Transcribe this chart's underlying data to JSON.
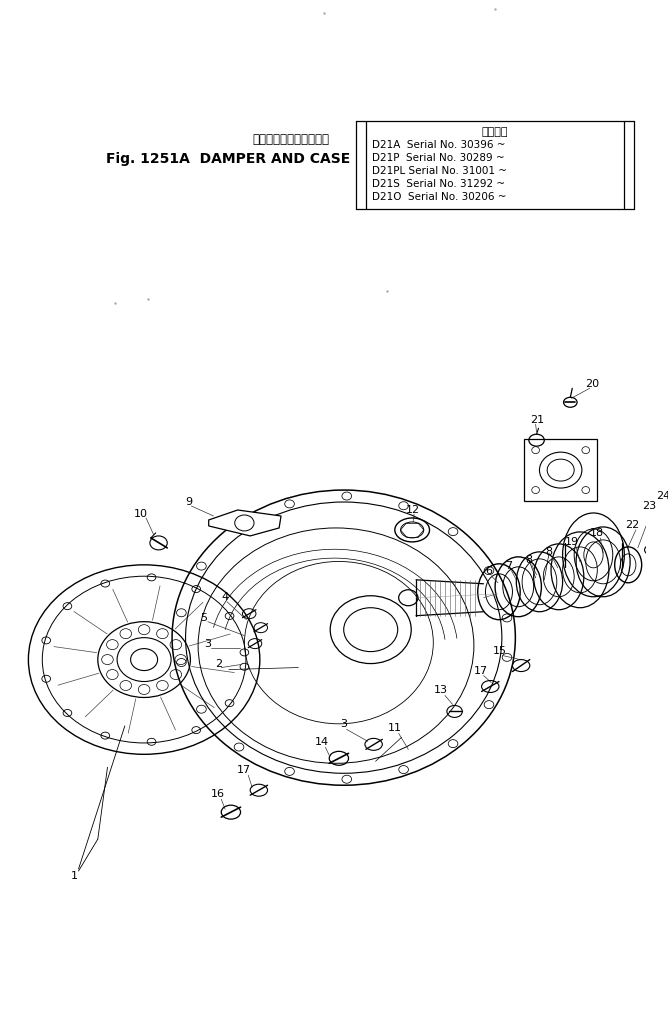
{
  "bg_color": "#ffffff",
  "title_japanese": "ダンパ　および　ケース",
  "title_english": "Fig. 1251A  DAMPER AND CASE",
  "box_title": "適用号機",
  "serial_lines": [
    "D21A  Serial No. 30396 ~",
    "D21P  Serial No. 30289 ~",
    "D21PL Serial No. 31001 ~",
    "D21S  Serial No. 31292 ~",
    "D21O  Serial No. 30206 ~"
  ]
}
